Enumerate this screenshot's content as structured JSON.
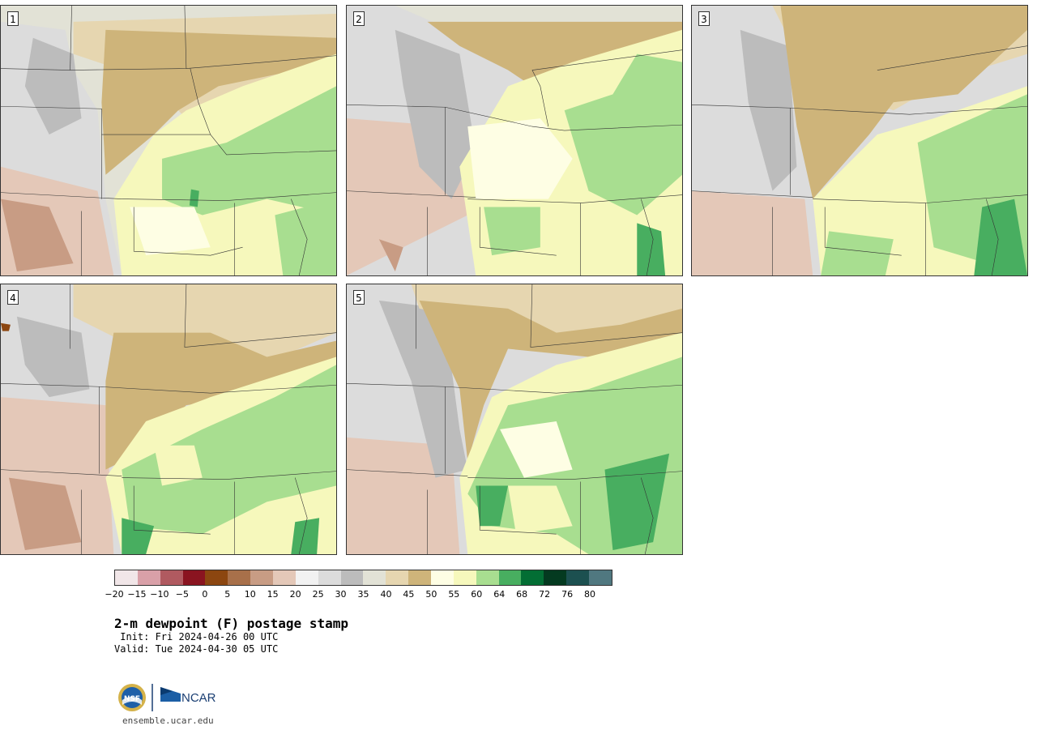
{
  "figure": {
    "title": "2-m dewpoint (F) postage stamp",
    "init": " Init: Fri 2024-04-26 00 UTC",
    "valid": "Valid: Tue 2024-04-30 05 UTC",
    "url": "ensemble.ucar.edu",
    "logos": [
      "nsf-logo",
      "ncar-logo"
    ],
    "logo_text": "NCAR"
  },
  "panels": [
    {
      "label": "1"
    },
    {
      "label": "2"
    },
    {
      "label": "3"
    },
    {
      "label": "4"
    },
    {
      "label": "5"
    }
  ],
  "colorbar": {
    "colors": [
      "#f1e6e8",
      "#d9a0a8",
      "#b05a60",
      "#8a1420",
      "#8c4610",
      "#a8704a",
      "#c89c84",
      "#e4c8b8",
      "#f2f2f2",
      "#dcdcdc",
      "#bcbcbc",
      "#e2e2d6",
      "#e6d6b0",
      "#ceb47a",
      "#fefee4",
      "#f6f8bc",
      "#a8de90",
      "#48ae60",
      "#036e34",
      "#043a20",
      "#1c5050",
      "#507880"
    ],
    "ticks": [
      "−20",
      "−15",
      "−10",
      "−5",
      "0",
      "5",
      "10",
      "15",
      "20",
      "25",
      "30",
      "35",
      "40",
      "45",
      "50",
      "55",
      "60",
      "64",
      "68",
      "72",
      "76",
      "80"
    ]
  }
}
